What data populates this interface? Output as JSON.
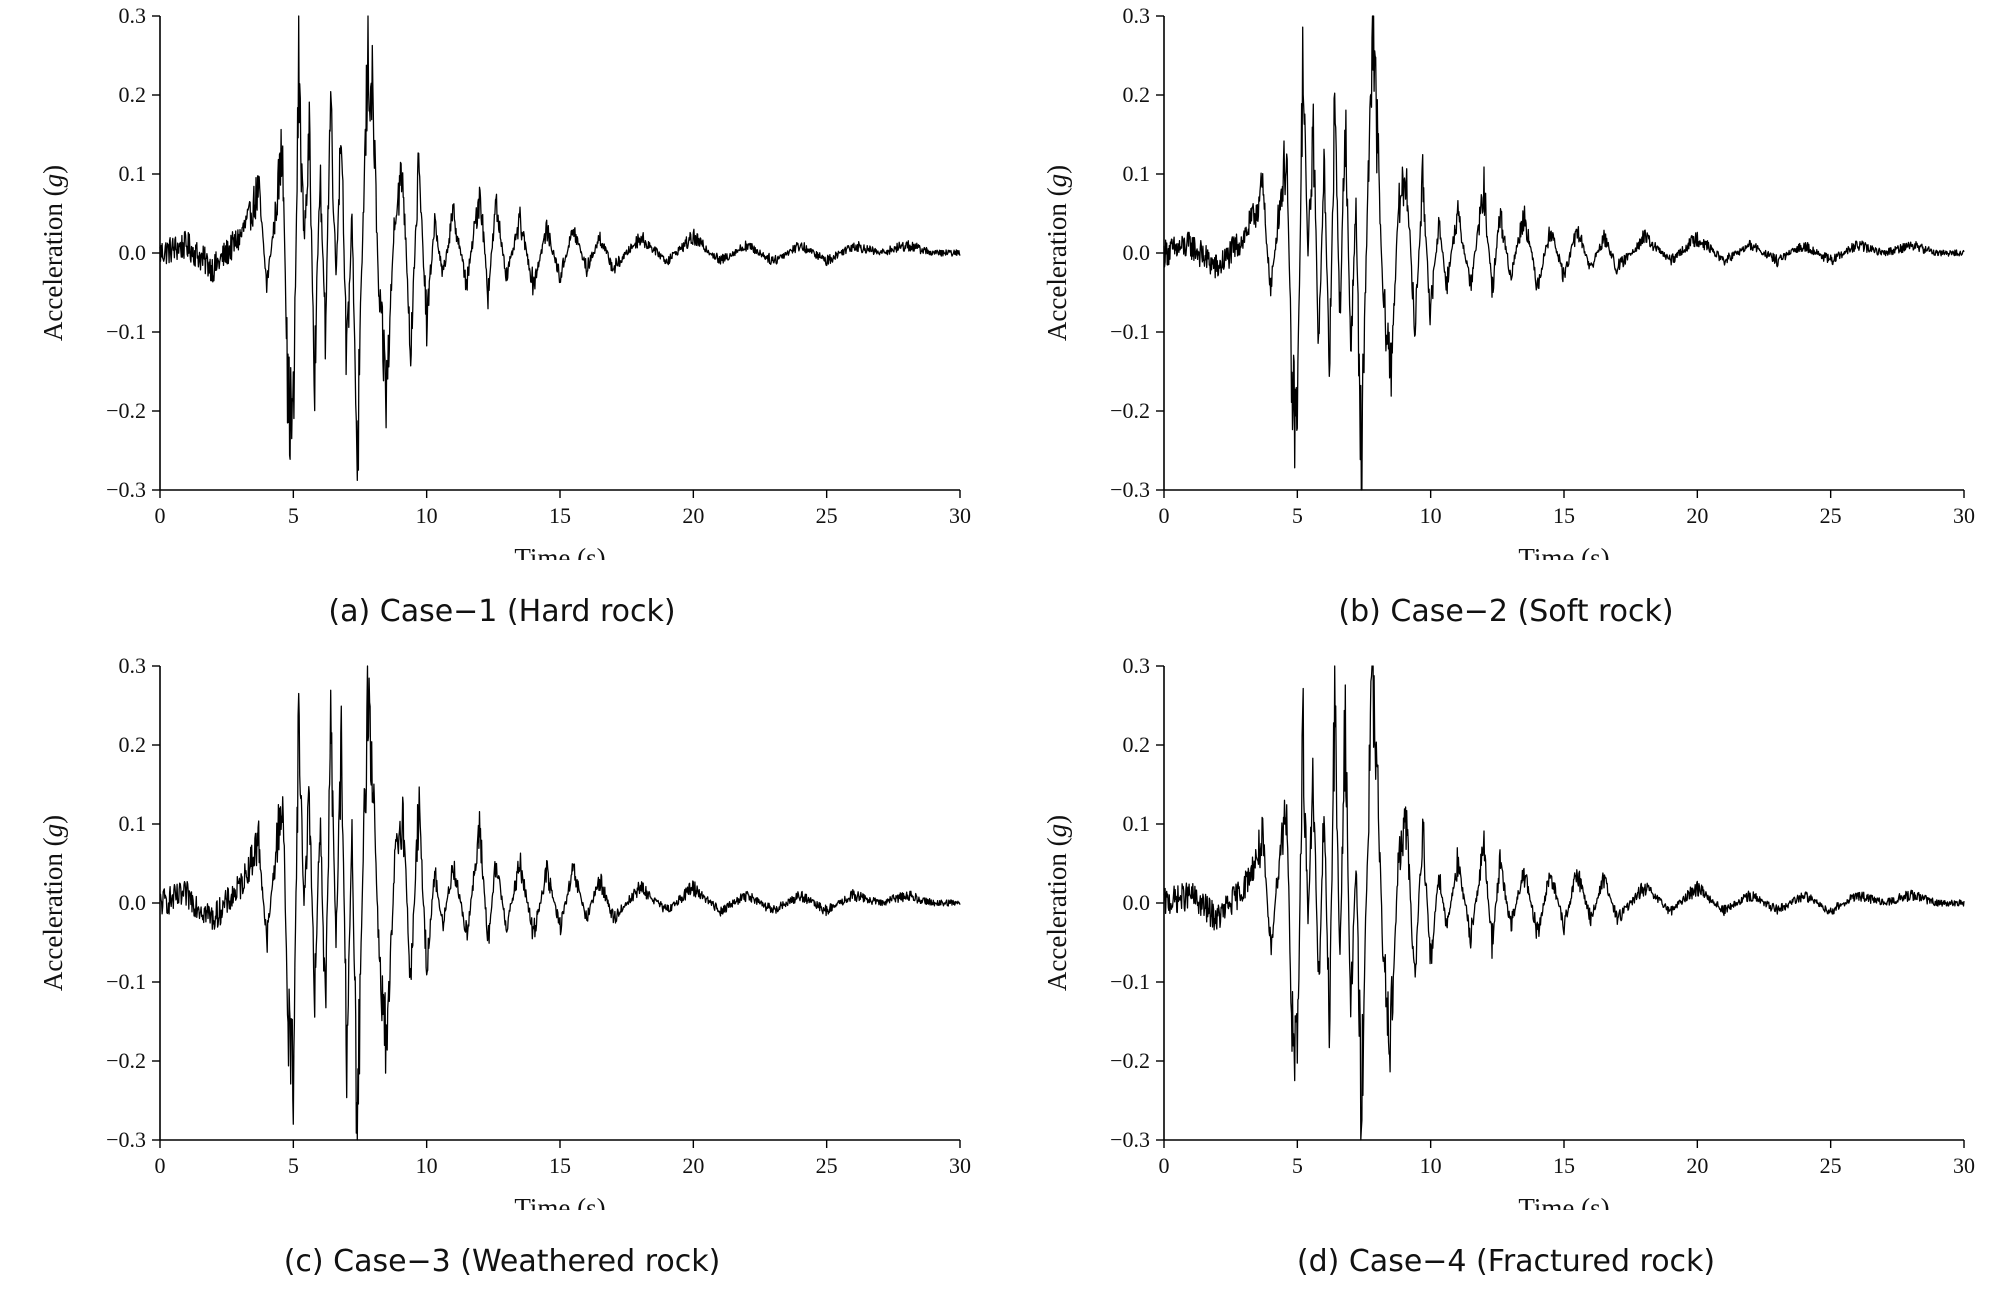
{
  "chart_data": [
    {
      "id": "a",
      "type": "line",
      "caption": "(a) Case−1 (Hard rock)",
      "xlabel": "Time (s)",
      "ylabel_prefix": "Acceleration (",
      "ylabel_unit": "g",
      "ylabel_suffix": ")",
      "xlim": [
        0,
        30
      ],
      "ylim": [
        -0.3,
        0.3
      ],
      "xticks": [
        0,
        5,
        10,
        15,
        20,
        25,
        30
      ],
      "xtick_labels": [
        "0",
        "5",
        "10",
        "15",
        "20",
        "25",
        "30"
      ],
      "yticks": [
        0.3,
        0.2,
        0.1,
        0.0,
        -0.1,
        -0.2,
        -0.3
      ],
      "ytick_labels": [
        "0.3",
        "0.2",
        "0.1",
        "0.0",
        "−0.1",
        "−0.2",
        "−0.3"
      ],
      "series": [
        {
          "name": "Case-1",
          "x": [
            0,
            1,
            2,
            3,
            3.4,
            3.7,
            4.0,
            4.3,
            4.6,
            4.8,
            5.0,
            5.2,
            5.4,
            5.6,
            5.8,
            6.0,
            6.2,
            6.4,
            6.6,
            6.8,
            7.0,
            7.2,
            7.4,
            7.6,
            7.8,
            8.0,
            8.2,
            8.5,
            8.8,
            9.1,
            9.4,
            9.7,
            10.0,
            10.3,
            10.6,
            11,
            11.5,
            12,
            12.3,
            12.6,
            13,
            13.5,
            14,
            14.5,
            15,
            15.5,
            16,
            16.5,
            17,
            18,
            19,
            20,
            21,
            22,
            23,
            24,
            25,
            26,
            27,
            28,
            29,
            30
          ],
          "y": [
            0.0,
            0.01,
            -0.02,
            0.02,
            0.05,
            0.08,
            -0.04,
            0.04,
            0.14,
            -0.19,
            -0.22,
            0.23,
            0.02,
            0.14,
            -0.15,
            0.1,
            -0.1,
            0.2,
            -0.03,
            0.17,
            -0.15,
            0.05,
            -0.27,
            0.02,
            0.25,
            0.18,
            -0.05,
            -0.18,
            0.05,
            0.1,
            -0.12,
            0.11,
            -0.09,
            0.04,
            -0.03,
            0.05,
            -0.04,
            0.08,
            -0.05,
            0.06,
            -0.03,
            0.04,
            -0.04,
            0.03,
            -0.03,
            0.03,
            -0.02,
            0.02,
            -0.02,
            0.02,
            -0.01,
            0.02,
            -0.01,
            0.01,
            -0.01,
            0.01,
            -0.01,
            0.01,
            0.0,
            0.01,
            0.0,
            0.0
          ]
        }
      ]
    },
    {
      "id": "b",
      "type": "line",
      "caption": "(b) Case−2 (Soft rock)",
      "xlabel": "Time (s)",
      "ylabel_prefix": "Acceleration (",
      "ylabel_unit": "g",
      "ylabel_suffix": ")",
      "xlim": [
        0,
        30
      ],
      "ylim": [
        -0.3,
        0.3
      ],
      "xticks": [
        0,
        5,
        10,
        15,
        20,
        25,
        30
      ],
      "xtick_labels": [
        "0",
        "5",
        "10",
        "15",
        "20",
        "25",
        "30"
      ],
      "yticks": [
        0.3,
        0.2,
        0.1,
        0.0,
        -0.1,
        -0.2,
        -0.3
      ],
      "ytick_labels": [
        "0.3",
        "0.2",
        "0.1",
        "0.0",
        "−0.1",
        "−0.2",
        "−0.3"
      ],
      "series": [
        {
          "name": "Case-2",
          "x": [
            0,
            1,
            2,
            3,
            3.4,
            3.7,
            4.0,
            4.3,
            4.6,
            4.8,
            5.0,
            5.2,
            5.4,
            5.6,
            5.8,
            6.0,
            6.2,
            6.4,
            6.6,
            6.8,
            7.0,
            7.2,
            7.4,
            7.6,
            7.8,
            8.0,
            8.2,
            8.5,
            8.8,
            9.1,
            9.4,
            9.7,
            10.0,
            10.3,
            10.6,
            11,
            11.5,
            12,
            12.3,
            12.6,
            13,
            13.5,
            14,
            14.5,
            15,
            15.5,
            16,
            16.5,
            17,
            18,
            19,
            20,
            21,
            22,
            23,
            24,
            25,
            26,
            27,
            28,
            29,
            30
          ],
          "y": [
            0.0,
            0.01,
            -0.02,
            0.02,
            0.05,
            0.08,
            -0.05,
            0.05,
            0.13,
            -0.18,
            -0.22,
            0.23,
            0.0,
            0.16,
            -0.12,
            0.12,
            -0.15,
            0.18,
            -0.08,
            0.17,
            -0.12,
            0.06,
            -0.29,
            0.02,
            0.27,
            0.15,
            -0.05,
            -0.15,
            0.06,
            0.1,
            -0.1,
            0.09,
            -0.08,
            0.04,
            -0.04,
            0.05,
            -0.04,
            0.08,
            -0.05,
            0.05,
            -0.03,
            0.05,
            -0.04,
            0.03,
            -0.03,
            0.03,
            -0.02,
            0.02,
            -0.02,
            0.02,
            -0.01,
            0.02,
            -0.01,
            0.01,
            -0.01,
            0.01,
            -0.01,
            0.01,
            0.0,
            0.01,
            0.0,
            0.0
          ]
        }
      ]
    },
    {
      "id": "c",
      "type": "line",
      "caption": "(c) Case−3 (Weathered rock)",
      "xlabel": "Time (s)",
      "ylabel_prefix": "Acceleration (",
      "ylabel_unit": "g",
      "ylabel_suffix": ")",
      "xlim": [
        0,
        30
      ],
      "ylim": [
        -0.3,
        0.3
      ],
      "xticks": [
        0,
        5,
        10,
        15,
        20,
        25,
        30
      ],
      "xtick_labels": [
        "0",
        "5",
        "10",
        "15",
        "20",
        "25",
        "30"
      ],
      "yticks": [
        0.3,
        0.2,
        0.1,
        0.0,
        -0.1,
        -0.2,
        -0.3
      ],
      "ytick_labels": [
        "0.3",
        "0.2",
        "0.1",
        "0.0",
        "−0.1",
        "−0.2",
        "−0.3"
      ],
      "series": [
        {
          "name": "Case-3",
          "x": [
            0,
            1,
            2,
            3,
            3.4,
            3.7,
            4.0,
            4.3,
            4.6,
            4.8,
            5.0,
            5.2,
            5.4,
            5.6,
            5.8,
            6.0,
            6.2,
            6.4,
            6.6,
            6.8,
            7.0,
            7.2,
            7.4,
            7.6,
            7.8,
            8.0,
            8.2,
            8.5,
            8.8,
            9.1,
            9.4,
            9.7,
            10.0,
            10.3,
            10.6,
            11,
            11.5,
            12,
            12.3,
            12.6,
            13,
            13.5,
            14,
            14.5,
            15,
            15.5,
            16,
            16.5,
            17,
            18,
            19,
            20,
            21,
            22,
            23,
            24,
            25,
            26,
            27,
            28,
            29,
            30
          ],
          "y": [
            0.0,
            0.01,
            -0.02,
            0.02,
            0.05,
            0.08,
            -0.05,
            0.05,
            0.14,
            -0.15,
            -0.21,
            0.23,
            0.0,
            0.14,
            -0.13,
            0.12,
            -0.14,
            0.22,
            -0.05,
            0.2,
            -0.18,
            0.08,
            -0.29,
            0.03,
            0.28,
            0.15,
            -0.05,
            -0.2,
            0.05,
            0.12,
            -0.1,
            0.12,
            -0.08,
            0.04,
            -0.03,
            0.05,
            -0.04,
            0.09,
            -0.05,
            0.05,
            -0.03,
            0.05,
            -0.04,
            0.04,
            -0.03,
            0.04,
            -0.02,
            0.03,
            -0.02,
            0.02,
            -0.01,
            0.02,
            -0.01,
            0.01,
            -0.01,
            0.01,
            -0.01,
            0.01,
            0.0,
            0.01,
            0.0,
            0.0
          ]
        }
      ]
    },
    {
      "id": "d",
      "type": "line",
      "caption": "(d) Case−4 (Fractured rock)",
      "xlabel": "Time (s)",
      "ylabel_prefix": "Acceleration (",
      "ylabel_unit": "g",
      "ylabel_suffix": ")",
      "xlim": [
        0,
        30
      ],
      "ylim": [
        -0.3,
        0.3
      ],
      "xticks": [
        0,
        5,
        10,
        15,
        20,
        25,
        30
      ],
      "xtick_labels": [
        "0",
        "5",
        "10",
        "15",
        "20",
        "25",
        "30"
      ],
      "yticks": [
        0.3,
        0.2,
        0.1,
        0.0,
        -0.1,
        -0.2,
        -0.3
      ],
      "ytick_labels": [
        "0.3",
        "0.2",
        "0.1",
        "0.0",
        "−0.1",
        "−0.2",
        "−0.3"
      ],
      "series": [
        {
          "name": "Case-4",
          "x": [
            0,
            1,
            2,
            3,
            3.4,
            3.7,
            4.0,
            4.3,
            4.6,
            4.8,
            5.0,
            5.2,
            5.4,
            5.6,
            5.8,
            6.0,
            6.2,
            6.4,
            6.6,
            6.8,
            7.0,
            7.2,
            7.4,
            7.6,
            7.8,
            8.0,
            8.2,
            8.5,
            8.8,
            9.1,
            9.4,
            9.7,
            10.0,
            10.3,
            10.6,
            11,
            11.5,
            12,
            12.3,
            12.6,
            13,
            13.5,
            14,
            14.5,
            15,
            15.5,
            16,
            16.5,
            17,
            18,
            19,
            20,
            21,
            22,
            23,
            24,
            25,
            26,
            27,
            28,
            29,
            30
          ],
          "y": [
            0.0,
            0.01,
            -0.02,
            0.02,
            0.05,
            0.08,
            -0.06,
            0.05,
            0.13,
            -0.16,
            -0.22,
            0.23,
            -0.02,
            0.16,
            -0.12,
            0.12,
            -0.15,
            0.25,
            -0.08,
            0.25,
            -0.15,
            0.06,
            -0.27,
            0.03,
            0.28,
            0.15,
            -0.05,
            -0.17,
            0.06,
            0.1,
            -0.1,
            0.1,
            -0.08,
            0.04,
            -0.03,
            0.05,
            -0.04,
            0.07,
            -0.05,
            0.05,
            -0.03,
            0.04,
            -0.04,
            0.04,
            -0.03,
            0.04,
            -0.02,
            0.03,
            -0.02,
            0.02,
            -0.01,
            0.02,
            -0.01,
            0.01,
            -0.01,
            0.01,
            -0.01,
            0.01,
            0.0,
            0.01,
            0.0,
            0.0
          ]
        }
      ]
    }
  ]
}
